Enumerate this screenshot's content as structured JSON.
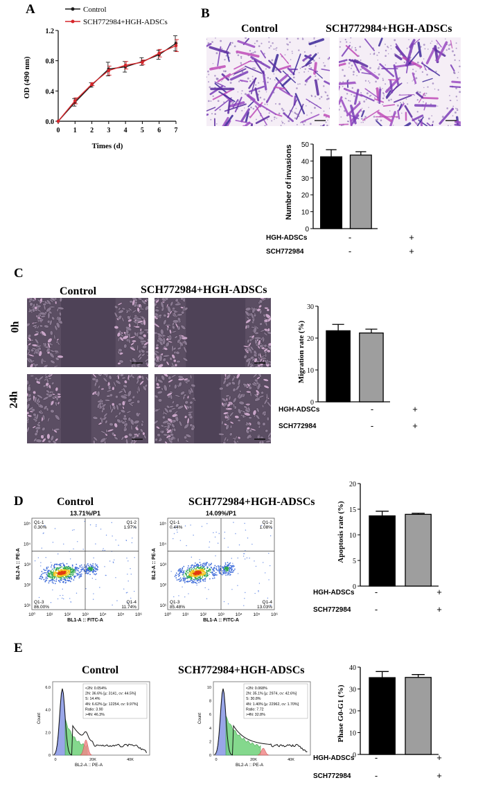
{
  "panels": {
    "A": {
      "label": "A",
      "legend": [
        "Control",
        "SCH772984+HGH-ADSCs"
      ],
      "colors": {
        "control": "#1a1a1a",
        "treated": "#d6262b"
      }
    },
    "B": {
      "label": "B",
      "image_titles": [
        "Control",
        "SCH772984+HGH-ADSCs"
      ],
      "conditions": [
        {
          "name": "HGH-ADSCs",
          "values": [
            "-",
            "+"
          ]
        },
        {
          "name": "SCH772984",
          "values": [
            "-",
            "+"
          ]
        }
      ]
    },
    "C": {
      "label": "C",
      "image_titles": [
        "Control",
        "SCH772984+HGH-ADSCs"
      ],
      "row_labels": [
        "0h",
        "24h"
      ],
      "conditions": [
        {
          "name": "HGH-ADSCs",
          "values": [
            "-",
            "+"
          ]
        },
        {
          "name": "SCH772984",
          "values": [
            "-",
            "+"
          ]
        }
      ]
    },
    "D": {
      "label": "D",
      "image_titles": [
        "Control",
        "SCH772984+HGH-ADSCs"
      ],
      "flow": [
        {
          "header": "13.71%/P1",
          "q1": "Q1-1",
          "q1v": "0.30%",
          "q2": "Q1-2",
          "q2v": "1.97%",
          "q3": "Q1-3",
          "q3v": "86.00%",
          "q4": "Q1-4",
          "q4v": "11.74%"
        },
        {
          "header": "14.09%/P1",
          "q1": "Q1-1",
          "q1v": "0.44%",
          "q2": "Q1-2",
          "q2v": "1.08%",
          "q3": "Q1-3",
          "q3v": "85.48%",
          "q4": "Q1-4",
          "q4v": "13.03%"
        }
      ],
      "flow_xlabel": "BL1-A :: FITC-A",
      "flow_ylabel": "BL2-A :: PE-A",
      "flow_xticks": [
        "10⁰",
        "10¹",
        "10²",
        "10³",
        "10⁴",
        "10⁵",
        "10⁶"
      ],
      "flow_yticks": [
        "10⁵",
        "10⁴",
        "10³",
        "10²",
        "10¹"
      ],
      "conditions": [
        {
          "name": "HGH-ADSCs",
          "values": [
            "-",
            "+"
          ]
        },
        {
          "name": "SCH772984",
          "values": [
            "-",
            "+"
          ]
        }
      ]
    },
    "E": {
      "label": "E",
      "image_titles": [
        "Control",
        "SCH772984+HGH-ADSCs"
      ],
      "hist": [
        {
          "lines": [
            "<2N: 0.054%",
            "2N: 36.6%  [µ: 3141, cv: 44.5%]",
            "S: 14.4%",
            "4N: 6.62%  [µ: 12254, cv: 9.97%]",
            "Ratio: 3.90",
            ">4N: 46.3%"
          ],
          "yticks": [
            "6.0",
            "4.0",
            "2.0",
            "0"
          ]
        },
        {
          "lines": [
            "<2N: 0.068%",
            "2N: 35.1%  [µ: 2974, cv: 42.6%]",
            "S: 30.8%",
            "4N: 1.40%  [µ: 22962, cv: 1.70%]",
            "Ratio: 7.72",
            ">4N: 32.8%"
          ],
          "yticks": [
            "10",
            "8",
            "6",
            "4",
            "2",
            "0"
          ]
        }
      ],
      "hist_xlabel": "BL2-A :: PE-A",
      "hist_ylabel": "Count",
      "hist_xticks": [
        "0",
        "20K",
        "40K"
      ],
      "conditions": [
        {
          "name": "HGH-ADSCs",
          "values": [
            "-",
            "+"
          ]
        },
        {
          "name": "SCH772984",
          "values": [
            "-",
            "+"
          ]
        }
      ]
    }
  },
  "chart_data": [
    {
      "id": "A",
      "type": "line",
      "xlabel": "Times (d)",
      "ylabel": "OD (490 nm)",
      "x": [
        0,
        1,
        2,
        3,
        4,
        5,
        6,
        7
      ],
      "xlim": [
        0,
        7
      ],
      "ylim": [
        0,
        1.2
      ],
      "yticks": [
        0.0,
        0.4,
        0.8,
        1.2
      ],
      "grid": false,
      "legend": "top-left",
      "series": [
        {
          "name": "Control",
          "values": [
            0.0,
            0.25,
            0.48,
            0.69,
            0.72,
            0.79,
            0.88,
            1.03
          ],
          "err": [
            0,
            0.05,
            0.03,
            0.09,
            0.07,
            0.05,
            0.06,
            0.1
          ]
        },
        {
          "name": "SCH772984+HGH-ADSCs",
          "values": [
            0.0,
            0.27,
            0.49,
            0.67,
            0.74,
            0.78,
            0.9,
            1.0
          ],
          "err": [
            0,
            0.04,
            0.02,
            0.06,
            0.05,
            0.03,
            0.05,
            0.08
          ]
        }
      ]
    },
    {
      "id": "B",
      "type": "bar",
      "ylabel": "Number of invasions",
      "ylim": [
        0,
        50
      ],
      "yticks": [
        0,
        10,
        20,
        30,
        40,
        50
      ],
      "values": [
        42.5,
        43.5
      ],
      "err": [
        4.2,
        2.0
      ],
      "colors": [
        "#000000",
        "#9e9e9e"
      ]
    },
    {
      "id": "C",
      "type": "bar",
      "ylabel": "Migration rate (%)",
      "ylim": [
        0,
        30
      ],
      "yticks": [
        0,
        10,
        20,
        30
      ],
      "values": [
        22.3,
        21.6
      ],
      "err": [
        2.0,
        1.2
      ],
      "colors": [
        "#000000",
        "#9e9e9e"
      ]
    },
    {
      "id": "D",
      "type": "bar",
      "ylabel": "Apoptosis rate (%)",
      "ylim": [
        0,
        20
      ],
      "yticks": [
        0,
        5,
        10,
        15,
        20
      ],
      "values": [
        13.7,
        14.0
      ],
      "err": [
        0.9,
        0.2
      ],
      "colors": [
        "#000000",
        "#9e9e9e"
      ]
    },
    {
      "id": "E",
      "type": "bar",
      "ylabel": "Phase G0-G1 (%)",
      "ylim": [
        0,
        40
      ],
      "yticks": [
        0,
        10,
        20,
        30,
        40
      ],
      "values": [
        35.2,
        35.3
      ],
      "err": [
        2.8,
        1.3
      ],
      "colors": [
        "#000000",
        "#9e9e9e"
      ]
    }
  ]
}
